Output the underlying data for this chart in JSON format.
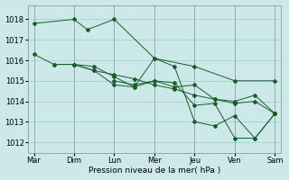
{
  "background_color": "#cce8e8",
  "grid_color": "#99cccc",
  "line_color": "#1a5c2a",
  "xlabel": "Pression niveau de la mer( hPa )",
  "ylim": [
    1011.5,
    1018.7
  ],
  "yticks": [
    1012,
    1013,
    1014,
    1015,
    1016,
    1017,
    1018
  ],
  "xlabels": [
    "Mar",
    "Dim",
    "Lun",
    "Mer",
    "Jeu",
    "Ven",
    "Sam"
  ],
  "lines": [
    {
      "x": [
        0,
        1,
        1.33,
        2,
        3,
        4,
        5,
        6
      ],
      "y": [
        1017.8,
        1018.0,
        1017.5,
        1018.0,
        1016.1,
        1015.7,
        1015.0,
        1015.0
      ]
    },
    {
      "x": [
        0,
        0.5,
        1,
        1.5,
        2,
        2.5,
        3,
        3.5,
        4,
        4.5,
        5,
        5.5,
        6
      ],
      "y": [
        1016.3,
        1015.8,
        1015.8,
        1015.7,
        1015.2,
        1014.7,
        1016.1,
        1015.7,
        1013.0,
        1012.8,
        1013.3,
        1012.2,
        1013.4
      ]
    },
    {
      "x": [
        0.5,
        1,
        1.5,
        2,
        2.5,
        3,
        3.5,
        4,
        4.5,
        5,
        5.5,
        6
      ],
      "y": [
        1015.8,
        1015.8,
        1015.5,
        1014.8,
        1014.7,
        1015.0,
        1014.7,
        1014.8,
        1014.1,
        1014.0,
        1014.3,
        1013.4
      ]
    },
    {
      "x": [
        1,
        1.5,
        2,
        2.5,
        3,
        3.5,
        4,
        4.5,
        5,
        5.5,
        6
      ],
      "y": [
        1015.8,
        1015.5,
        1015.3,
        1015.1,
        1014.8,
        1014.6,
        1014.3,
        1014.1,
        1013.9,
        1014.0,
        1013.4
      ]
    },
    {
      "x": [
        2,
        2.5,
        3,
        3.5,
        4,
        4.5,
        5,
        5.5,
        6
      ],
      "y": [
        1015.0,
        1014.8,
        1015.0,
        1014.9,
        1013.8,
        1013.9,
        1012.2,
        1012.2,
        1013.4
      ]
    }
  ]
}
